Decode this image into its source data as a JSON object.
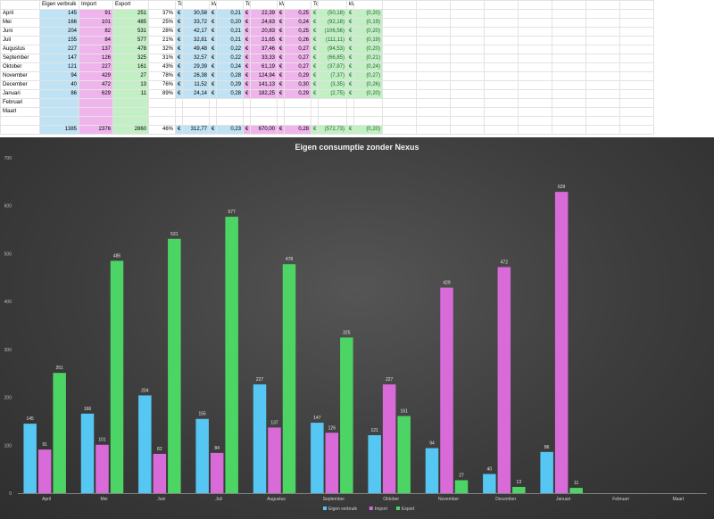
{
  "sheet": {
    "headers": [
      "",
      "Eigen verbruik",
      "Import",
      "Export",
      "",
      "Totaal",
      "",
      "kWh",
      "",
      "Totaal",
      "",
      "kWh",
      "",
      "Totaal",
      "",
      "kWh",
      "",
      "",
      "",
      "",
      "",
      "",
      "",
      "",
      ""
    ],
    "rows": [
      [
        "April",
        "145",
        "91",
        "251",
        "37%",
        "€",
        "30,58",
        "€",
        "0,21",
        "€",
        "22,39",
        "€",
        "0,25",
        "€",
        "(50,18)",
        "€",
        "(0,20)"
      ],
      [
        "Mei",
        "166",
        "101",
        "485",
        "25%",
        "€",
        "33,72",
        "€",
        "0,20",
        "€",
        "24,63",
        "€",
        "0,24",
        "€",
        "(92,18)",
        "€",
        "(0,19)"
      ],
      [
        "Juni",
        "204",
        "82",
        "531",
        "28%",
        "€",
        "42,17",
        "€",
        "0,21",
        "€",
        "20,83",
        "€",
        "0,25",
        "€",
        "(106,56)",
        "€",
        "(0,20)"
      ],
      [
        "Juli",
        "155",
        "84",
        "577",
        "21%",
        "€",
        "32,81",
        "€",
        "0,21",
        "€",
        "21,65",
        "€",
        "0,26",
        "€",
        "(111,11)",
        "€",
        "(0,19)"
      ],
      [
        "Augustus",
        "227",
        "137",
        "478",
        "32%",
        "€",
        "49,48",
        "€",
        "0,22",
        "€",
        "37,46",
        "€",
        "0,27",
        "€",
        "(94,53)",
        "€",
        "(0,20)"
      ],
      [
        "September",
        "147",
        "126",
        "325",
        "31%",
        "€",
        "32,57",
        "€",
        "0,22",
        "€",
        "33,33",
        "€",
        "0,27",
        "€",
        "(66,85)",
        "€",
        "(0,21)"
      ],
      [
        "Oktober",
        "121",
        "227",
        "161",
        "43%",
        "€",
        "29,39",
        "€",
        "0,24",
        "€",
        "61,19",
        "€",
        "0,27",
        "€",
        "(37,87)",
        "€",
        "(0,24)"
      ],
      [
        "November",
        "94",
        "429",
        "27",
        "78%",
        "€",
        "26,38",
        "€",
        "0,28",
        "€",
        "124,94",
        "€",
        "0,29",
        "€",
        "(7,37)",
        "€",
        "(0,27)"
      ],
      [
        "December",
        "40",
        "472",
        "13",
        "76%",
        "€",
        "11,52",
        "€",
        "0,29",
        "€",
        "141,13",
        "€",
        "0,30",
        "€",
        "(3,35)",
        "€",
        "(0,26)"
      ],
      [
        "Januari",
        "86",
        "629",
        "11",
        "89%",
        "€",
        "24,14",
        "€",
        "0,28",
        "€",
        "182,25",
        "€",
        "0,29",
        "€",
        "(2,75)",
        "€",
        "(0,20)"
      ],
      [
        "Februari",
        "",
        "",
        "",
        "",
        "",
        "",
        "",
        "",
        "",
        "",
        "",
        "",
        "",
        "",
        "",
        ""
      ],
      [
        "Maart",
        "",
        "",
        "",
        "",
        "",
        "",
        "",
        "",
        "",
        "",
        "",
        "",
        "",
        "",
        "",
        ""
      ],
      [
        "",
        "1385",
        "2376",
        "2860",
        "46%",
        "€",
        "312,77",
        "€",
        "0,23",
        "€",
        "670,00",
        "€",
        "0,28",
        "€",
        "(572,73)",
        "€",
        "(0,20)"
      ]
    ]
  },
  "chart_data": {
    "type": "bar",
    "title": "Eigen consumptie zonder Nexus",
    "categories": [
      "April",
      "Mei",
      "Juni",
      "Juli",
      "Augustus",
      "September",
      "Oktober",
      "November",
      "December",
      "Januari",
      "Februari",
      "Maart"
    ],
    "series": [
      {
        "name": "Eigen verbruik",
        "color": "#56c6f2",
        "values": [
          145,
          166,
          204,
          155,
          227,
          147,
          121,
          94,
          40,
          86,
          null,
          null
        ]
      },
      {
        "name": "Import",
        "color": "#d96bd9",
        "values": [
          91,
          101,
          82,
          84,
          137,
          126,
          227,
          429,
          472,
          629,
          null,
          null
        ]
      },
      {
        "name": "Export",
        "color": "#4cd564",
        "values": [
          251,
          485,
          531,
          577,
          478,
          325,
          161,
          27,
          13,
          11,
          null,
          null
        ]
      }
    ],
    "ylim": [
      0,
      700
    ],
    "yticks": [
      0,
      100,
      200,
      300,
      400,
      500,
      600,
      700
    ],
    "grid": false,
    "legend": "bottom"
  }
}
